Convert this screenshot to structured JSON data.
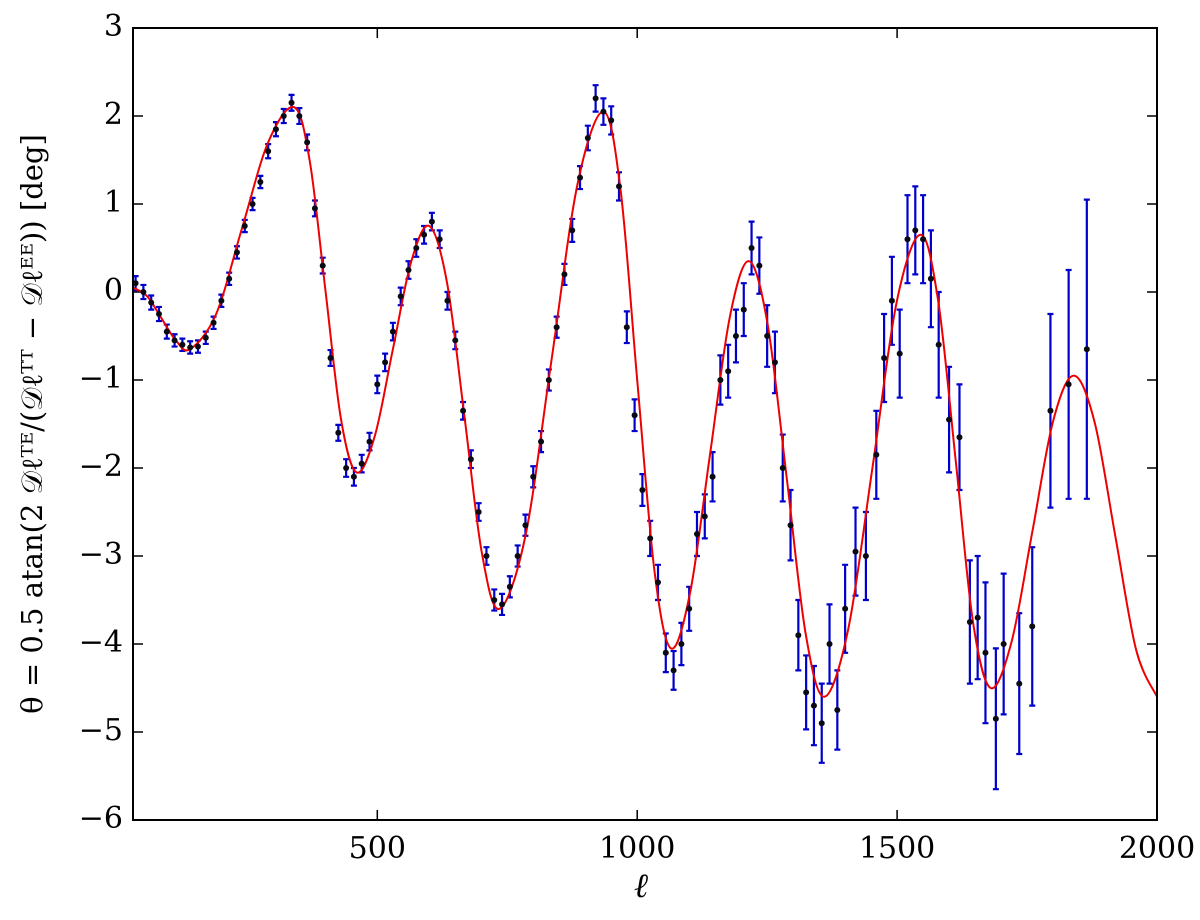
{
  "chart_data": {
    "type": "scatter",
    "xlabel": "ℓ",
    "ylabel": "θ = 0.5 atan(2 𝒟ℓᵀᴱ/(𝒟ℓᵀᵀ − 𝒟ℓᴱᴱ)) [deg]",
    "xlim": [
      30,
      2000
    ],
    "ylim": [
      -6,
      3
    ],
    "xticks": [
      500,
      1000,
      1500,
      2000
    ],
    "yticks": [
      {
        "value": -6,
        "label": "−6"
      },
      {
        "value": -5,
        "label": "−5"
      },
      {
        "value": -4,
        "label": "−4"
      },
      {
        "value": -3,
        "label": "−3"
      },
      {
        "value": -2,
        "label": "−2"
      },
      {
        "value": -1,
        "label": "−1"
      },
      0,
      1,
      2,
      3
    ],
    "points": {
      "color": "#0a0a14",
      "error_color": "#0000cc",
      "x": [
        35,
        50,
        65,
        80,
        95,
        110,
        125,
        140,
        155,
        170,
        185,
        200,
        215,
        230,
        245,
        260,
        275,
        290,
        305,
        320,
        335,
        350,
        365,
        380,
        395,
        410,
        425,
        440,
        455,
        470,
        485,
        500,
        515,
        530,
        545,
        560,
        575,
        590,
        605,
        620,
        635,
        650,
        665,
        680,
        695,
        710,
        725,
        740,
        755,
        770,
        785,
        800,
        815,
        830,
        845,
        860,
        875,
        890,
        905,
        920,
        935,
        950,
        965,
        980,
        995,
        1010,
        1025,
        1040,
        1055,
        1070,
        1085,
        1100,
        1115,
        1130,
        1145,
        1160,
        1175,
        1190,
        1205,
        1220,
        1235,
        1250,
        1265,
        1280,
        1295,
        1310,
        1325,
        1340,
        1355,
        1370,
        1385,
        1400,
        1420,
        1440,
        1460,
        1475,
        1490,
        1505,
        1520,
        1535,
        1550,
        1565,
        1580,
        1600,
        1620,
        1640,
        1655,
        1670,
        1690,
        1705,
        1735,
        1760,
        1795,
        1830,
        1865
      ],
      "values": [
        0.1,
        0.0,
        -0.12,
        -0.25,
        -0.45,
        -0.55,
        -0.6,
        -0.63,
        -0.62,
        -0.52,
        -0.35,
        -0.1,
        0.15,
        0.45,
        0.75,
        1.0,
        1.25,
        1.6,
        1.85,
        2.0,
        2.15,
        2.0,
        1.7,
        0.95,
        0.3,
        -0.75,
        -1.6,
        -2.0,
        -2.1,
        -1.95,
        -1.7,
        -1.05,
        -0.8,
        -0.45,
        -0.05,
        0.25,
        0.5,
        0.65,
        0.8,
        0.6,
        -0.1,
        -0.55,
        -1.35,
        -1.9,
        -2.5,
        -3.0,
        -3.5,
        -3.55,
        -3.35,
        -3.0,
        -2.65,
        -2.1,
        -1.7,
        -1.0,
        -0.4,
        0.2,
        0.7,
        1.3,
        1.75,
        2.2,
        2.05,
        1.95,
        1.2,
        -0.4,
        -1.4,
        -2.25,
        -2.8,
        -3.3,
        -4.1,
        -4.3,
        -4.0,
        -3.6,
        -2.75,
        -2.55,
        -2.1,
        -1.0,
        -0.9,
        -0.5,
        -0.2,
        0.5,
        0.3,
        -0.5,
        -0.8,
        -2.0,
        -2.65,
        -3.9,
        -4.55,
        -4.7,
        -4.9,
        -4.0,
        -4.75,
        -3.6,
        -2.95,
        -3.0,
        -1.85,
        -0.75,
        -0.1,
        -0.7,
        0.6,
        0.7,
        0.6,
        0.15,
        -0.6,
        -1.45,
        -1.65,
        -3.75,
        -3.7,
        -4.1,
        -4.85,
        -4.0,
        -4.45,
        -3.8,
        -1.35,
        -1.05,
        -0.65
      ],
      "errors": [
        0.08,
        0.08,
        0.08,
        0.08,
        0.08,
        0.07,
        0.07,
        0.07,
        0.07,
        0.07,
        0.07,
        0.07,
        0.07,
        0.07,
        0.07,
        0.07,
        0.07,
        0.08,
        0.08,
        0.08,
        0.09,
        0.09,
        0.09,
        0.09,
        0.09,
        0.09,
        0.09,
        0.1,
        0.1,
        0.1,
        0.1,
        0.1,
        0.1,
        0.1,
        0.1,
        0.1,
        0.1,
        0.1,
        0.1,
        0.1,
        0.1,
        0.1,
        0.1,
        0.1,
        0.1,
        0.1,
        0.12,
        0.12,
        0.12,
        0.12,
        0.12,
        0.12,
        0.12,
        0.12,
        0.12,
        0.12,
        0.13,
        0.13,
        0.14,
        0.15,
        0.15,
        0.16,
        0.16,
        0.18,
        0.18,
        0.18,
        0.2,
        0.2,
        0.22,
        0.22,
        0.24,
        0.25,
        0.25,
        0.25,
        0.28,
        0.28,
        0.3,
        0.3,
        0.3,
        0.3,
        0.32,
        0.35,
        0.35,
        0.38,
        0.4,
        0.4,
        0.42,
        0.45,
        0.45,
        0.45,
        0.45,
        0.5,
        0.5,
        0.5,
        0.5,
        0.5,
        0.5,
        0.5,
        0.5,
        0.5,
        0.5,
        0.55,
        0.6,
        0.6,
        0.6,
        0.7,
        0.7,
        0.8,
        0.8,
        0.8,
        0.8,
        0.9,
        1.1,
        1.3,
        1.7
      ]
    },
    "model": {
      "color": "#ee0000",
      "x": [
        30,
        57.5,
        85,
        112.5,
        140,
        190,
        240,
        290,
        340,
        370,
        400,
        430,
        460,
        495,
        530,
        565,
        600,
        634,
        668,
        701,
        735,
        785,
        835,
        885,
        935,
        968,
        1000,
        1033,
        1065,
        1102,
        1140,
        1178,
        1215,
        1251,
        1288,
        1324,
        1360,
        1406,
        1453,
        1499,
        1545,
        1579,
        1613,
        1646,
        1680,
        1720,
        1760,
        1800,
        1840,
        1880,
        1920,
        1960,
        2000
      ],
      "values": [
        0.05,
        -0.05,
        -0.3,
        -0.55,
        -0.65,
        -0.25,
        0.73,
        1.7,
        2.1,
        1.49,
        0.03,
        -1.44,
        -2.05,
        -1.64,
        -0.65,
        0.34,
        0.75,
        0.11,
        -1.43,
        -2.96,
        -3.6,
        -2.77,
        -0.78,
        1.22,
        2.05,
        1.16,
        -1.0,
        -3.16,
        -4.05,
        -3.41,
        -1.85,
        -0.29,
        0.35,
        -0.37,
        -2.13,
        -3.88,
        -4.6,
        -3.83,
        -1.98,
        -0.12,
        0.65,
        -0.1,
        -1.93,
        -3.75,
        -4.5,
        -3.98,
        -2.73,
        -1.47,
        -0.95,
        -1.48,
        -2.78,
        -4.07,
        -4.6
      ]
    }
  }
}
